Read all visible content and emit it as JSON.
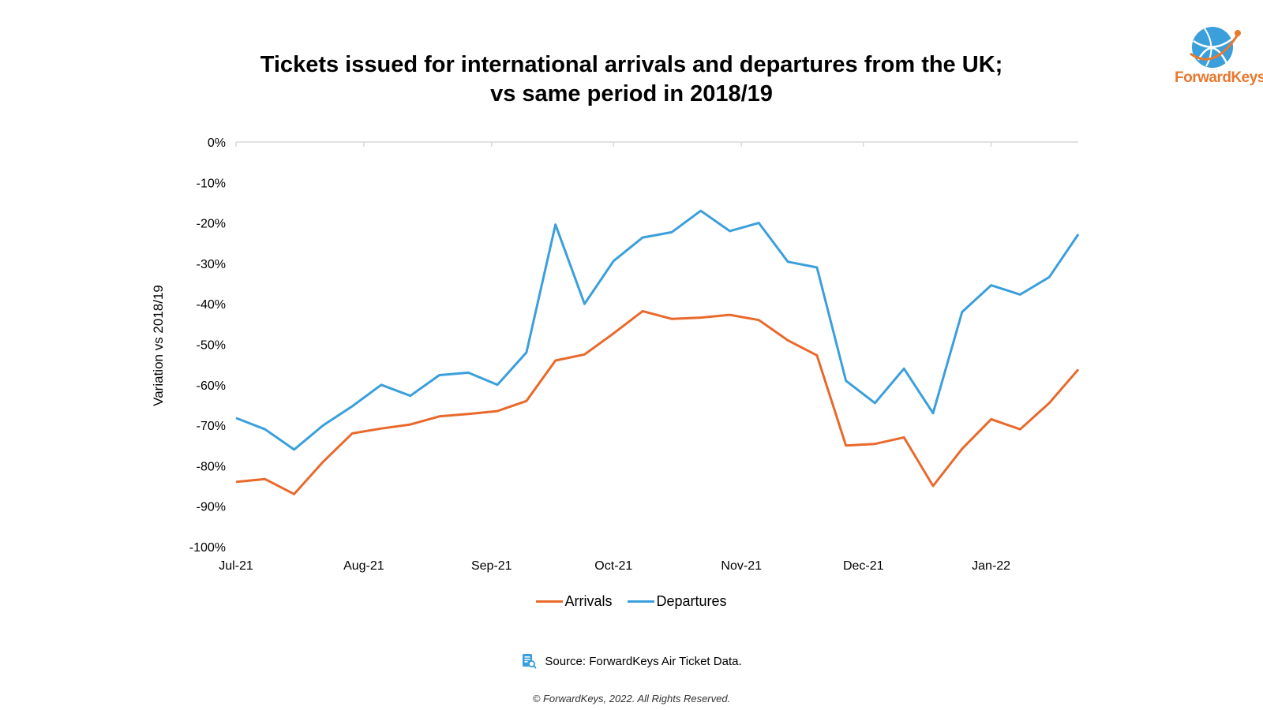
{
  "logo": {
    "text": "ForwardKeys",
    "icon": "globe-icon"
  },
  "source": {
    "text": "Source: ForwardKeys Air Ticket Data.",
    "icon": "document-search-icon"
  },
  "copyright": "© ForwardKeys, 2022. All Rights Reserved.",
  "colors": {
    "arrivals": "#e8692b",
    "departures": "#3b9fdb",
    "axis": "#d9d9d9"
  },
  "chart_data": {
    "type": "line",
    "title": [
      "Tickets issued for international arrivals and departures from the UK;",
      "vs same period in 2018/19"
    ],
    "ylabel": "Variation vs 2018/19",
    "xlabel": "",
    "ylim": [
      -100,
      0
    ],
    "yticks": [
      0,
      -10,
      -20,
      -30,
      -40,
      -50,
      -60,
      -70,
      -80,
      -90,
      -100
    ],
    "ytick_labels": [
      "0%",
      "-10%",
      "-20%",
      "-30%",
      "-40%",
      "-50%",
      "-60%",
      "-70%",
      "-80%",
      "-90%",
      "-100%"
    ],
    "x_month_labels": [
      "Jul-21",
      "Aug-21",
      "Sep-21",
      "Oct-21",
      "Nov-21",
      "Dec-21",
      "Jan-22"
    ],
    "x_month_start_index": [
      0,
      4.4,
      8.8,
      13,
      17.4,
      21.6,
      26
    ],
    "grid": false,
    "legend_position": "bottom-center",
    "series": [
      {
        "name": "Arrivals",
        "values": [
          -84,
          -83.3,
          -87,
          -79,
          -72,
          -70.8,
          -69.8,
          -67.8,
          -67.2,
          -66.5,
          -64,
          -54,
          -52.5,
          -47.3,
          -41.8,
          -43.7,
          -43.4,
          -42.7,
          -44,
          -49,
          -52.7,
          -75,
          -74.6,
          -73,
          -85,
          -75.8,
          -68.5,
          -71,
          -64.5,
          -56.2
        ]
      },
      {
        "name": "Departures",
        "values": [
          -68.2,
          -71,
          -76,
          -70,
          -65.3,
          -60,
          -62.7,
          -57.6,
          -57,
          -60,
          -52,
          -20.4,
          -40,
          -29.4,
          -23.6,
          -22.3,
          -17,
          -22,
          -20,
          -29.6,
          -31,
          -59,
          -64.5,
          -56,
          -67,
          -42,
          -35.4,
          -37.7,
          -33.4,
          -22.8
        ]
      }
    ]
  }
}
